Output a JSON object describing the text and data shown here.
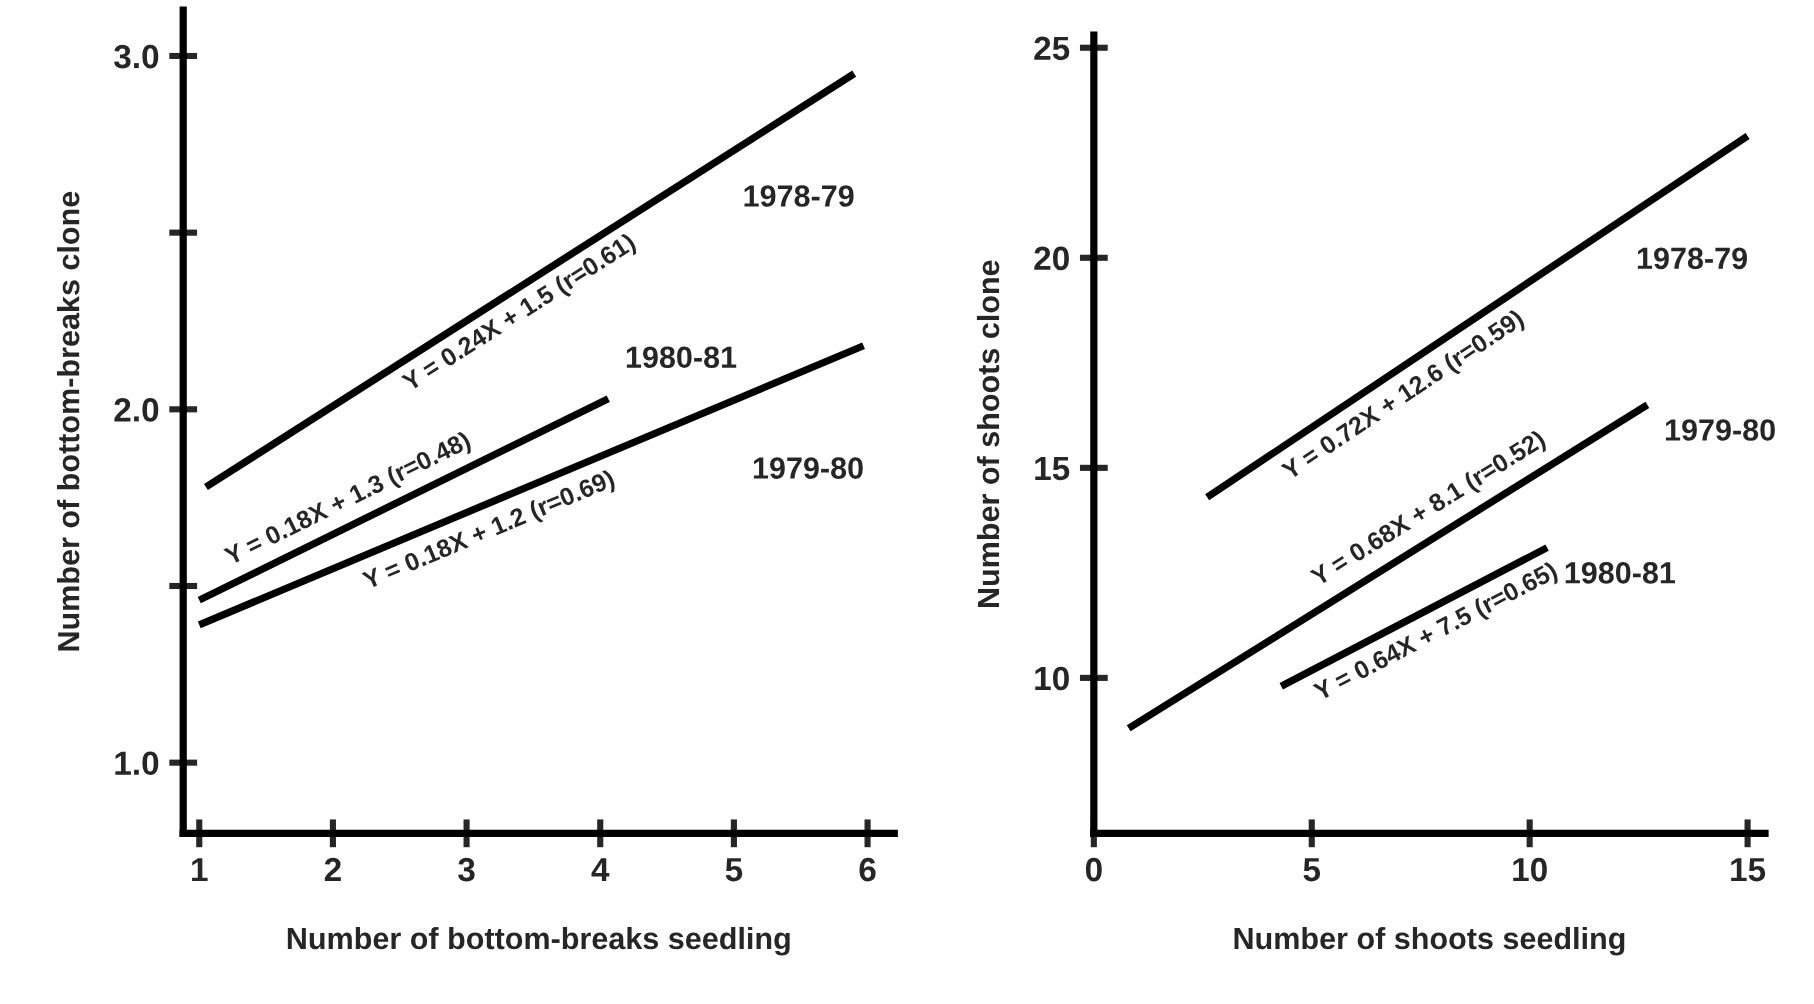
{
  "chart_data": [
    {
      "type": "line",
      "xlabel": "Number of bottom-breaks seedling",
      "ylabel": "Number of bottom-breaks clone",
      "xlim": [
        0.88,
        6.2
      ],
      "xticks": [
        1,
        2,
        3,
        4,
        5,
        6
      ],
      "ylim": [
        0.8,
        3.13
      ],
      "yticks": [
        {
          "value": 1,
          "label": "1.0"
        },
        {
          "value": 1.5,
          "label": null
        },
        {
          "value": 2,
          "label": "2.0"
        },
        {
          "value": 2.5,
          "label": null
        },
        {
          "value": 3,
          "label": "3.0"
        }
      ],
      "grid": false,
      "legend": false,
      "marker": "none",
      "line_style": "solid",
      "series": [
        {
          "name": "1978-79",
          "color": "#000000",
          "x": [
            1.05,
            5.9
          ],
          "values": [
            1.78,
            2.95
          ]
        },
        {
          "name": "1980-81",
          "color": "#000000",
          "x": [
            1.0,
            4.06
          ],
          "values": [
            1.46,
            2.03
          ]
        },
        {
          "name": "1979-80",
          "color": "#000000",
          "x": [
            1.0,
            5.97
          ],
          "values": [
            1.39,
            2.18
          ]
        }
      ],
      "annotations": [
        {
          "text": "Y = 0.24X + 1.5 (r=0.61)",
          "x": 3.3,
          "y": 2.33
        },
        {
          "text": "Y = 0.18X + 1.3 (r=0.48)",
          "x": 2.2,
          "y": 1.68
        },
        {
          "text": "Y = 0.18X + 1.2 (r=0.69)",
          "x": 3.1,
          "y": 1.72
        }
      ]
    },
    {
      "type": "line",
      "xlabel": "Number of shoots seedling",
      "ylabel": "Number of shoots clone",
      "xlim": [
        0,
        15.4
      ],
      "xticks": [
        0,
        5,
        10,
        15
      ],
      "ylim": [
        6.3,
        25.3
      ],
      "yticks": [
        10,
        15,
        20,
        25
      ],
      "grid": false,
      "legend": false,
      "marker": "none",
      "line_style": "solid",
      "series": [
        {
          "name": "1978-79",
          "color": "#000000",
          "x": [
            2.6,
            15.0
          ],
          "values": [
            14.3,
            22.9
          ]
        },
        {
          "name": "1979-80",
          "color": "#000000",
          "x": [
            0.8,
            12.7
          ],
          "values": [
            8.8,
            16.5
          ]
        },
        {
          "name": "1980-81",
          "color": "#000000",
          "x": [
            4.3,
            10.4
          ],
          "values": [
            9.8,
            13.1
          ]
        }
      ],
      "annotations": [
        {
          "text": "Y = 0.72X + 12.6 (r=0.59)",
          "x": 6.8,
          "y": 17.2
        },
        {
          "text": "Y = 0.68X + 8.1 (r=0.52)",
          "x": 8.0,
          "y": 13.5
        },
        {
          "text": "Y = 0.64X + 7.5 (r=0.65)",
          "x": 7.6,
          "y": 11.6
        }
      ]
    }
  ]
}
